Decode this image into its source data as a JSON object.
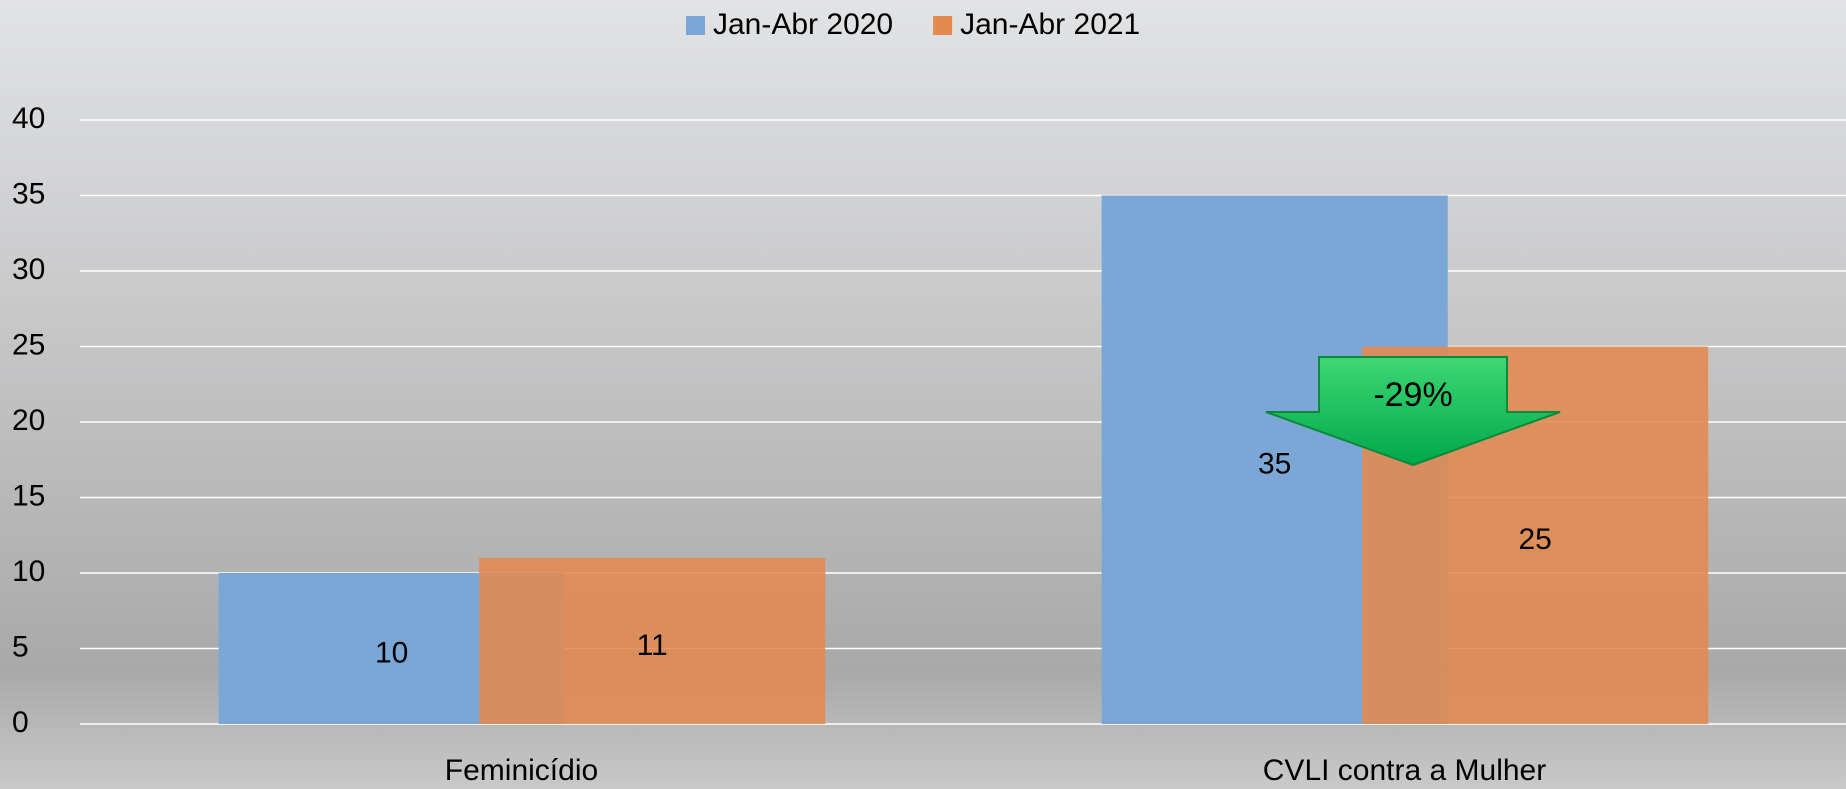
{
  "chart_data": {
    "type": "bar",
    "categories": [
      "Feminicídio",
      "CVLI contra a Mulher"
    ],
    "series": [
      {
        "name": "Jan-Abr 2020",
        "color": "#7aa7d6",
        "values": [
          10,
          35
        ]
      },
      {
        "name": "Jan-Abr 2021",
        "color": "#e38a4f",
        "values": [
          11,
          25
        ]
      }
    ],
    "ylim": [
      0,
      40
    ],
    "yticks": [
      0,
      5,
      10,
      15,
      20,
      25,
      30,
      35,
      40
    ],
    "grid": true,
    "legend": "top",
    "annotation": "-29%"
  }
}
